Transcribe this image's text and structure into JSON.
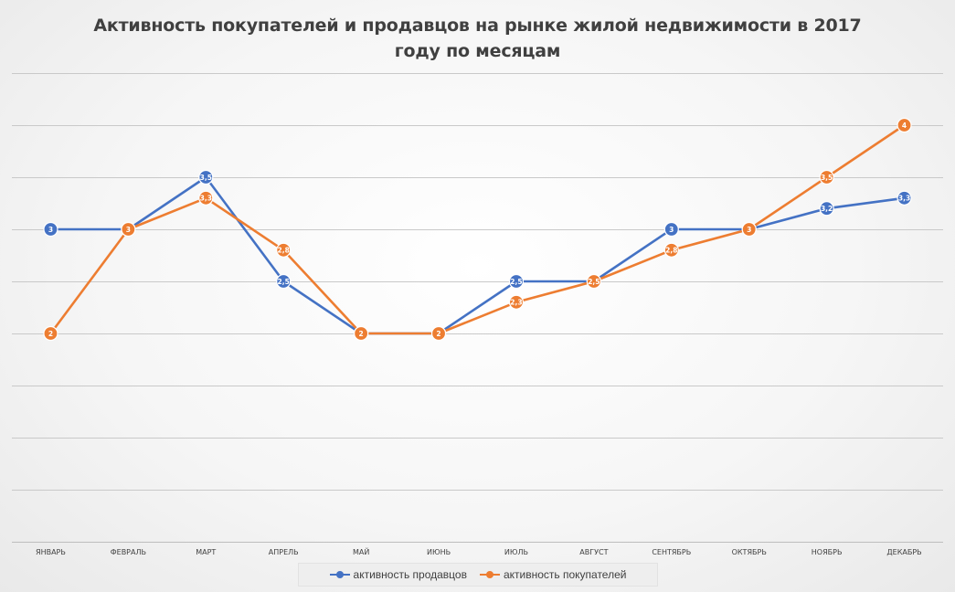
{
  "title_line1": "Активность покупателей и продавцов на рынке жилой недвижимости в 2017",
  "title_line2": "году по месяцам",
  "colors": {
    "sellers": "#4472C4",
    "buyers": "#ED7D31",
    "grid": "#c9c9c9",
    "text": "#404040"
  },
  "chart_data": {
    "type": "line",
    "title": "Активность покупателей и продавцов на рынке жилой недвижимости в 2017 году по месяцам",
    "xlabel": "",
    "ylabel": "",
    "ylim": [
      0,
      4.5
    ],
    "grid": true,
    "legend": "bottom",
    "categories": [
      "ЯНВАРЬ",
      "ФЕВРАЛЬ",
      "МАРТ",
      "АПРЕЛЬ",
      "МАЙ",
      "ИЮНЬ",
      "ИЮЛЬ",
      "АВГУСТ",
      "СЕНТЯБРЬ",
      "ОКТЯБРЬ",
      "НОЯБРЬ",
      "ДЕКАБРЬ"
    ],
    "series": [
      {
        "name": "активность продавцов",
        "values": [
          3,
          3,
          3.5,
          2.5,
          2,
          2,
          2.5,
          2.5,
          3,
          3,
          3.2,
          3.3
        ],
        "labels": [
          "3",
          "3",
          "3,5",
          "2,5",
          "2",
          "2",
          "2,5",
          "2,5",
          "3",
          "3",
          "3,2",
          "3,3"
        ]
      },
      {
        "name": "активность покупателей",
        "values": [
          2,
          3,
          3.3,
          2.8,
          2,
          2,
          2.3,
          2.5,
          2.8,
          3,
          3.5,
          4
        ],
        "labels": [
          "2",
          "3",
          "3,3",
          "2,8",
          "2",
          "2",
          "2,3",
          "2,5",
          "2,8",
          "3",
          "3,5",
          "4"
        ]
      }
    ]
  }
}
